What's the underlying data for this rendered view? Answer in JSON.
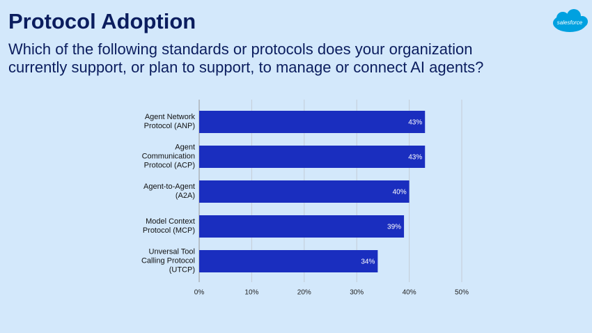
{
  "header": {
    "title": "Protocol Adoption",
    "subtitle": [
      "Which of the following standards or protocols does your organization",
      "currently support, or plan to support, to manage or connect AI agents?"
    ],
    "logo": "salesforce"
  },
  "chart_data": {
    "type": "hbar",
    "categories": [
      "Agent Network Protocol (ANP)",
      "Agent Communication Protocol (ACP)",
      "Agent-to-Agent (A2A)",
      "Model Context Protocol (MCP)",
      "Unversal Tool Calling Protocol (UTCP)"
    ],
    "values": [
      43,
      43,
      40,
      39,
      34
    ],
    "value_labels": [
      "43%",
      "43%",
      "40%",
      "39%",
      "34%"
    ],
    "color": "#1a2ebf",
    "xlim": [
      0,
      50
    ],
    "xticks": [
      {
        "value": 0,
        "label": "0%"
      },
      {
        "value": 10,
        "label": "10%"
      },
      {
        "value": 20,
        "label": "20%"
      },
      {
        "value": 30,
        "label": "30%"
      },
      {
        "value": 40,
        "label": "40%"
      },
      {
        "value": 50,
        "label": "50%"
      }
    ],
    "grid": true
  }
}
